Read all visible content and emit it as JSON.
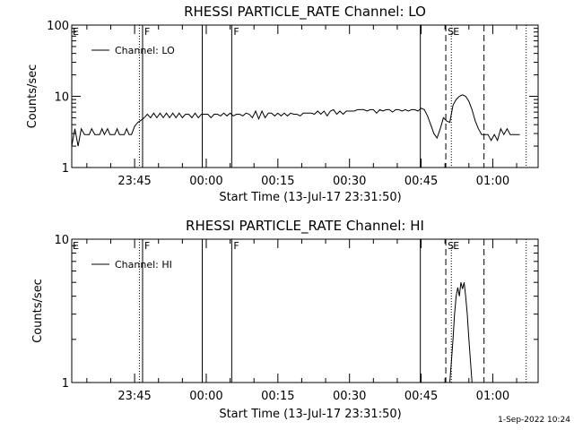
{
  "chart_data": [
    {
      "type": "line",
      "title": "RHESSI PARTICLE_RATE Channel: LO",
      "xlabel": "Start Time (13-Jul-17 23:31:50)",
      "ylabel": "Counts/sec",
      "yscale": "log",
      "ylim": [
        1,
        100
      ],
      "y_ticks": [
        "1",
        "10",
        "100"
      ],
      "x_ticks": [
        "23:45",
        "00:00",
        "00:15",
        "00:30",
        "00:45",
        "01:00"
      ],
      "legend": "top-left",
      "series": [
        {
          "name": "Channel: LO",
          "points": [
            [
              "23:31:50",
              2.0
            ],
            [
              "23:32:30",
              3.5
            ],
            [
              "23:33:10",
              2.0
            ],
            [
              "23:33:50",
              3.5
            ],
            [
              "23:34:30",
              2.9
            ],
            [
              "23:35:30",
              2.9
            ],
            [
              "23:36:00",
              3.5
            ],
            [
              "23:36:40",
              2.9
            ],
            [
              "23:37:40",
              2.9
            ],
            [
              "23:38:10",
              3.5
            ],
            [
              "23:38:40",
              2.9
            ],
            [
              "23:39:20",
              3.5
            ],
            [
              "23:39:50",
              2.9
            ],
            [
              "23:40:50",
              2.9
            ],
            [
              "23:41:20",
              3.5
            ],
            [
              "23:41:50",
              2.9
            ],
            [
              "23:42:50",
              2.9
            ],
            [
              "23:43:20",
              3.5
            ],
            [
              "23:43:50",
              2.9
            ],
            [
              "23:44:20",
              2.9
            ],
            [
              "23:45:00",
              3.8
            ],
            [
              "23:45:40",
              4.3
            ],
            [
              "23:46:20",
              4.6
            ],
            [
              "23:47:00",
              5.0
            ],
            [
              "23:47:40",
              5.6
            ],
            [
              "23:48:20",
              5.0
            ],
            [
              "23:49:00",
              5.8
            ],
            [
              "23:49:40",
              5.0
            ],
            [
              "23:50:20",
              5.8
            ],
            [
              "23:51:00",
              5.0
            ],
            [
              "23:51:40",
              5.8
            ],
            [
              "23:52:20",
              5.0
            ],
            [
              "23:53:00",
              5.8
            ],
            [
              "23:53:40",
              5.0
            ],
            [
              "23:54:20",
              5.8
            ],
            [
              "23:55:00",
              5.0
            ],
            [
              "23:55:40",
              5.6
            ],
            [
              "23:56:20",
              5.6
            ],
            [
              "23:57:00",
              5.0
            ],
            [
              "23:57:40",
              5.8
            ],
            [
              "23:58:20",
              5.0
            ],
            [
              "23:59:00",
              5.6
            ],
            [
              "23:59:40",
              5.6
            ],
            [
              "00:00:20",
              5.6
            ],
            [
              "00:01:00",
              5.0
            ],
            [
              "00:01:40",
              5.6
            ],
            [
              "00:02:20",
              5.6
            ],
            [
              "00:03:00",
              5.3
            ],
            [
              "00:03:40",
              5.8
            ],
            [
              "00:04:20",
              5.3
            ],
            [
              "00:05:00",
              5.8
            ],
            [
              "00:05:40",
              5.3
            ],
            [
              "00:06:20",
              5.6
            ],
            [
              "00:07:00",
              5.6
            ],
            [
              "00:07:40",
              5.3
            ],
            [
              "00:08:20",
              5.8
            ],
            [
              "00:09:00",
              5.6
            ],
            [
              "00:09:40",
              5.0
            ],
            [
              "00:10:20",
              6.2
            ],
            [
              "00:11:00",
              4.8
            ],
            [
              "00:11:40",
              6.2
            ],
            [
              "00:12:20",
              5.0
            ],
            [
              "00:13:00",
              5.8
            ],
            [
              "00:13:40",
              5.8
            ],
            [
              "00:14:20",
              5.3
            ],
            [
              "00:15:00",
              5.8
            ],
            [
              "00:15:40",
              5.3
            ],
            [
              "00:16:20",
              5.8
            ],
            [
              "00:17:00",
              5.3
            ],
            [
              "00:17:40",
              5.8
            ],
            [
              "00:18:20",
              5.6
            ],
            [
              "00:19:00",
              5.6
            ],
            [
              "00:19:40",
              5.3
            ],
            [
              "00:20:20",
              5.8
            ],
            [
              "00:21:00",
              5.8
            ],
            [
              "00:22:00",
              5.8
            ],
            [
              "00:22:40",
              5.6
            ],
            [
              "00:23:20",
              6.2
            ],
            [
              "00:24:00",
              5.6
            ],
            [
              "00:24:40",
              6.2
            ],
            [
              "00:25:20",
              5.3
            ],
            [
              "00:26:00",
              6.2
            ],
            [
              "00:26:40",
              6.5
            ],
            [
              "00:27:20",
              5.6
            ],
            [
              "00:28:00",
              6.2
            ],
            [
              "00:28:40",
              5.6
            ],
            [
              "00:29:20",
              6.2
            ],
            [
              "00:30:00",
              6.2
            ],
            [
              "00:31:00",
              6.2
            ],
            [
              "00:31:40",
              6.5
            ],
            [
              "00:33:00",
              6.5
            ],
            [
              "00:33:40",
              6.2
            ],
            [
              "00:34:20",
              6.5
            ],
            [
              "00:35:00",
              6.5
            ],
            [
              "00:35:40",
              5.8
            ],
            [
              "00:36:20",
              6.5
            ],
            [
              "00:37:00",
              6.2
            ],
            [
              "00:37:40",
              6.5
            ],
            [
              "00:38:20",
              6.5
            ],
            [
              "00:39:00",
              6.0
            ],
            [
              "00:39:40",
              6.5
            ],
            [
              "00:40:20",
              6.5
            ],
            [
              "00:41:00",
              6.2
            ],
            [
              "00:41:40",
              6.5
            ],
            [
              "00:42:20",
              6.2
            ],
            [
              "00:43:00",
              6.5
            ],
            [
              "00:43:40",
              6.5
            ],
            [
              "00:44:20",
              6.2
            ],
            [
              "00:45:00",
              6.8
            ],
            [
              "00:45:40",
              6.5
            ],
            [
              "00:46:20",
              5.3
            ],
            [
              "00:47:00",
              4.0
            ],
            [
              "00:47:40",
              3.0
            ],
            [
              "00:48:20",
              2.6
            ],
            [
              "00:49:00",
              3.5
            ],
            [
              "00:49:40",
              5.0
            ],
            [
              "00:50:20",
              4.5
            ],
            [
              "00:51:00",
              4.3
            ],
            [
              "00:51:40",
              7.5
            ],
            [
              "00:52:20",
              9.0
            ],
            [
              "00:53:00",
              10.0
            ],
            [
              "00:53:40",
              10.5
            ],
            [
              "00:54:20",
              10.0
            ],
            [
              "00:55:00",
              8.5
            ],
            [
              "00:55:40",
              6.5
            ],
            [
              "00:56:20",
              4.5
            ],
            [
              "00:57:00",
              3.5
            ],
            [
              "00:57:40",
              2.9
            ],
            [
              "00:58:20",
              2.9
            ],
            [
              "00:59:00",
              2.9
            ],
            [
              "00:59:40",
              2.4
            ],
            [
              "01:00:20",
              2.9
            ],
            [
              "01:01:00",
              2.4
            ],
            [
              "01:01:40",
              3.5
            ],
            [
              "01:02:20",
              2.9
            ],
            [
              "01:03:00",
              3.5
            ],
            [
              "01:03:40",
              2.9
            ],
            [
              "01:05:40",
              2.9
            ]
          ]
        }
      ],
      "vlines": [
        {
          "time": "23:46:00",
          "style": "dotted",
          "label": ""
        },
        {
          "time": "23:46:40",
          "style": "solid",
          "label": "F"
        },
        {
          "time": "23:59:10",
          "style": "solid",
          "label": ""
        },
        {
          "time": "00:05:20",
          "style": "solid",
          "label": "F"
        },
        {
          "time": "00:44:50",
          "style": "solid",
          "label": ""
        },
        {
          "time": "00:50:10",
          "style": "dashed",
          "label": "S"
        },
        {
          "time": "00:51:20",
          "style": "dotted",
          "label": "E"
        },
        {
          "time": "00:58:10",
          "style": "dashed",
          "label": ""
        },
        {
          "time": "01:07:00",
          "style": "dotted",
          "label": ""
        }
      ],
      "edge_label": "E"
    },
    {
      "type": "line",
      "title": "RHESSI PARTICLE_RATE Channel: HI",
      "xlabel": "Start Time (13-Jul-17 23:31:50)",
      "ylabel": "Counts/sec",
      "yscale": "log",
      "ylim": [
        1,
        10
      ],
      "y_ticks": [
        "1",
        "10"
      ],
      "x_ticks": [
        "23:45",
        "00:00",
        "00:15",
        "00:30",
        "00:45",
        "01:00"
      ],
      "legend": "top-left",
      "series": [
        {
          "name": "Channel: HI",
          "points": [
            [
              "00:51:00",
              1.0
            ],
            [
              "00:51:20",
              1.4
            ],
            [
              "00:51:40",
              2.0
            ],
            [
              "00:52:00",
              3.0
            ],
            [
              "00:52:20",
              4.0
            ],
            [
              "00:52:40",
              4.6
            ],
            [
              "00:53:00",
              4.0
            ],
            [
              "00:53:20",
              5.0
            ],
            [
              "00:53:40",
              4.5
            ],
            [
              "00:54:00",
              5.0
            ],
            [
              "00:54:20",
              4.0
            ],
            [
              "00:54:40",
              3.0
            ],
            [
              "00:55:00",
              2.0
            ],
            [
              "00:55:20",
              1.4
            ],
            [
              "00:55:40",
              1.0
            ]
          ]
        }
      ],
      "vlines": [
        {
          "time": "23:46:00",
          "style": "dotted",
          "label": ""
        },
        {
          "time": "23:46:40",
          "style": "solid",
          "label": "F"
        },
        {
          "time": "23:59:10",
          "style": "solid",
          "label": ""
        },
        {
          "time": "00:05:20",
          "style": "solid",
          "label": "F"
        },
        {
          "time": "00:44:50",
          "style": "solid",
          "label": ""
        },
        {
          "time": "00:50:10",
          "style": "dashed",
          "label": "S"
        },
        {
          "time": "00:51:20",
          "style": "dotted",
          "label": "E"
        },
        {
          "time": "00:58:10",
          "style": "dashed",
          "label": ""
        },
        {
          "time": "01:07:00",
          "style": "dotted",
          "label": ""
        }
      ],
      "edge_label": "E"
    }
  ],
  "footer": {
    "date_stamp": "1-Sep-2022 10:24"
  }
}
